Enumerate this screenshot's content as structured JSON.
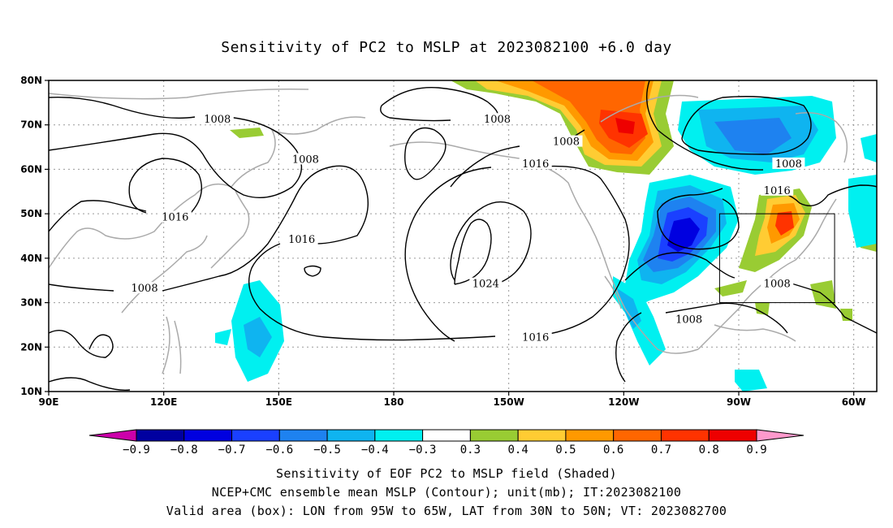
{
  "title": "Sensitivity of PC2 to MSLP at 2023082100 +6.0 day",
  "captions": {
    "line1": "Sensitivity of EOF PC2 to MSLP field (Shaded)",
    "line2": "NCEP+CMC ensemble mean MSLP (Contour); unit(mb); IT:2023082100",
    "line3": "Valid area (box): LON from 95W to 65W, LAT from 30N to 50N; VT: 2023082700"
  },
  "map": {
    "lon_range": [
      90,
      306
    ],
    "lat_range": [
      10,
      80
    ],
    "lat_ticks": [
      {
        "lat": 80,
        "label": "80N"
      },
      {
        "lat": 70,
        "label": "70N"
      },
      {
        "lat": 60,
        "label": "60N"
      },
      {
        "lat": 50,
        "label": "50N"
      },
      {
        "lat": 40,
        "label": "40N"
      },
      {
        "lat": 30,
        "label": "30N"
      },
      {
        "lat": 20,
        "label": "20N"
      },
      {
        "lat": 10,
        "label": "10N"
      }
    ],
    "lon_ticks": [
      {
        "lon": 90,
        "label": "90E"
      },
      {
        "lon": 120,
        "label": "120E"
      },
      {
        "lon": 150,
        "label": "150E"
      },
      {
        "lon": 180,
        "label": "180"
      },
      {
        "lon": 210,
        "label": "150W"
      },
      {
        "lon": 240,
        "label": "120W"
      },
      {
        "lon": 270,
        "label": "90W"
      },
      {
        "lon": 300,
        "label": "60W"
      }
    ],
    "valid_box": {
      "lon": [
        265,
        295
      ],
      "lat": [
        30,
        50
      ]
    },
    "contour_labels": [
      {
        "text": "1008",
        "lon": 134,
        "lat": 71
      },
      {
        "text": "1008",
        "lon": 157,
        "lat": 62
      },
      {
        "text": "1016",
        "lon": 123,
        "lat": 49
      },
      {
        "text": "1016",
        "lon": 156,
        "lat": 44
      },
      {
        "text": "1008",
        "lon": 115,
        "lat": 33
      },
      {
        "text": "1008",
        "lon": 207,
        "lat": 71
      },
      {
        "text": "1008",
        "lon": 225,
        "lat": 66
      },
      {
        "text": "1016",
        "lon": 217,
        "lat": 61
      },
      {
        "text": "1024",
        "lon": 204,
        "lat": 34
      },
      {
        "text": "1016",
        "lon": 217,
        "lat": 22
      },
      {
        "text": "1008",
        "lon": 283,
        "lat": 61
      },
      {
        "text": "1016",
        "lon": 280,
        "lat": 55
      },
      {
        "text": "1008",
        "lon": 257,
        "lat": 26
      },
      {
        "text": "1008",
        "lon": 280,
        "lat": 34
      }
    ]
  },
  "colorbar": {
    "colors": [
      "#cc00aa",
      "#0000a0",
      "#0000e0",
      "#1a40ff",
      "#1e82f0",
      "#0fb4f0",
      "#00f0f0",
      "#ffffff",
      "#99cc33",
      "#ffcc33",
      "#ff9900",
      "#ff6600",
      "#ff3300",
      "#ee0000",
      "#ff99cc"
    ],
    "labels": [
      "−0.9",
      "−0.8",
      "−0.7",
      "−0.6",
      "−0.5",
      "−0.4",
      "−0.3",
      "0.3",
      "0.4",
      "0.5",
      "0.6",
      "0.7",
      "0.8",
      "0.9"
    ]
  }
}
